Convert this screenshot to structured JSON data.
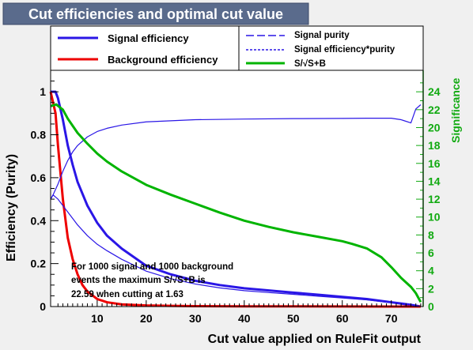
{
  "header": {
    "title": "Cut efficiencies and optimal cut value"
  },
  "legend": {
    "left": [
      {
        "label": "Signal efficiency",
        "color": "#2a16e6",
        "style": "solid"
      },
      {
        "label": "Background efficiency",
        "color": "#ee0000",
        "style": "solid"
      }
    ],
    "right": [
      {
        "label": "Signal purity",
        "color": "#2a16e6",
        "style": "dashed"
      },
      {
        "label": "Signal efficiency*purity",
        "color": "#2a16e6",
        "style": "dotted"
      },
      {
        "label": "S/√S+B",
        "color": "#00b400",
        "style": "solid"
      }
    ]
  },
  "annotation": {
    "line1": "For 1000 signal and 1000 background",
    "line2": "events the maximum S/√S+B is",
    "line3": "22.59 when cutting at  1.63"
  },
  "colors": {
    "signal": "#2a16e6",
    "background": "#ee0000",
    "significance": "#00b400",
    "significance_axis": "#11aa11",
    "frame_bg": "#ffffff"
  },
  "chart_data": {
    "type": "line",
    "xlabel": "Cut value applied on RuleFit output",
    "ylabel": "Efficiency (Purity)",
    "y2label": "Significance",
    "xlim": [
      0.5,
      76.5
    ],
    "ylim": [
      0,
      1.1
    ],
    "y2lim": [
      0,
      26.4
    ],
    "xticks": [
      10,
      20,
      30,
      40,
      50,
      60,
      70
    ],
    "yticks": [
      0,
      0.2,
      0.4,
      0.6,
      0.8,
      1
    ],
    "yticklabels": [
      "0",
      "0.2",
      "0.4",
      "0.6",
      "0.8",
      "1"
    ],
    "y2ticks": [
      0,
      2,
      4,
      6,
      8,
      10,
      12,
      14,
      16,
      18,
      20,
      22,
      24
    ],
    "series": [
      {
        "name": "Signal efficiency",
        "axis": "left",
        "x": [
          0.5,
          1.5,
          2,
          3,
          4,
          5,
          6,
          8,
          10,
          12,
          15,
          20,
          25,
          30,
          35,
          40,
          45,
          50,
          55,
          60,
          65,
          70,
          74,
          76
        ],
        "y": [
          1.0,
          1.0,
          0.97,
          0.87,
          0.75,
          0.66,
          0.58,
          0.47,
          0.39,
          0.33,
          0.27,
          0.19,
          0.15,
          0.12,
          0.1,
          0.085,
          0.075,
          0.065,
          0.055,
          0.045,
          0.035,
          0.02,
          0.008,
          0.0
        ]
      },
      {
        "name": "Background efficiency",
        "axis": "left",
        "x": [
          0.5,
          1.5,
          2,
          3,
          4,
          5,
          6,
          7,
          8,
          10,
          12,
          15,
          20,
          25,
          30,
          40,
          50,
          60,
          70,
          76
        ],
        "y": [
          1.0,
          0.9,
          0.75,
          0.5,
          0.32,
          0.22,
          0.15,
          0.1,
          0.07,
          0.035,
          0.02,
          0.01,
          0.005,
          0.003,
          0.002,
          0.001,
          0.001,
          0.0005,
          0.0,
          0.0
        ]
      },
      {
        "name": "Signal purity",
        "axis": "left",
        "x": [
          0.5,
          1,
          2,
          3,
          4,
          5,
          6,
          8,
          10,
          12,
          15,
          20,
          25,
          30,
          40,
          50,
          60,
          65,
          70,
          72,
          74,
          75,
          76
        ],
        "y": [
          0.5,
          0.52,
          0.57,
          0.63,
          0.68,
          0.72,
          0.75,
          0.79,
          0.815,
          0.83,
          0.845,
          0.86,
          0.865,
          0.87,
          0.873,
          0.875,
          0.876,
          0.877,
          0.877,
          0.87,
          0.855,
          0.92,
          0.94
        ]
      },
      {
        "name": "Signal efficiency*purity",
        "axis": "left",
        "x": [
          0.5,
          1,
          2,
          3,
          4,
          5,
          6,
          8,
          10,
          12,
          15,
          20,
          25,
          30,
          35,
          40,
          45,
          50,
          55,
          60,
          65,
          70,
          74,
          76
        ],
        "y": [
          0.5,
          0.52,
          0.5,
          0.47,
          0.44,
          0.41,
          0.38,
          0.33,
          0.29,
          0.26,
          0.22,
          0.165,
          0.13,
          0.105,
          0.087,
          0.074,
          0.065,
          0.057,
          0.048,
          0.04,
          0.031,
          0.018,
          0.007,
          0.0
        ]
      },
      {
        "name": "S/√S+B",
        "axis": "right",
        "x": [
          0.5,
          1.63,
          3,
          4,
          5,
          6,
          8,
          10,
          12,
          15,
          20,
          25,
          30,
          35,
          40,
          45,
          50,
          55,
          60,
          62,
          65,
          68,
          70,
          72,
          74,
          75,
          76
        ],
        "y": [
          22.4,
          22.59,
          22.0,
          21.0,
          20.2,
          19.4,
          18.2,
          17.1,
          16.2,
          15.1,
          13.6,
          12.5,
          11.5,
          10.5,
          9.6,
          8.9,
          8.3,
          7.8,
          7.3,
          7.0,
          6.5,
          5.5,
          4.4,
          3.2,
          2.2,
          1.5,
          0.5
        ]
      }
    ]
  }
}
